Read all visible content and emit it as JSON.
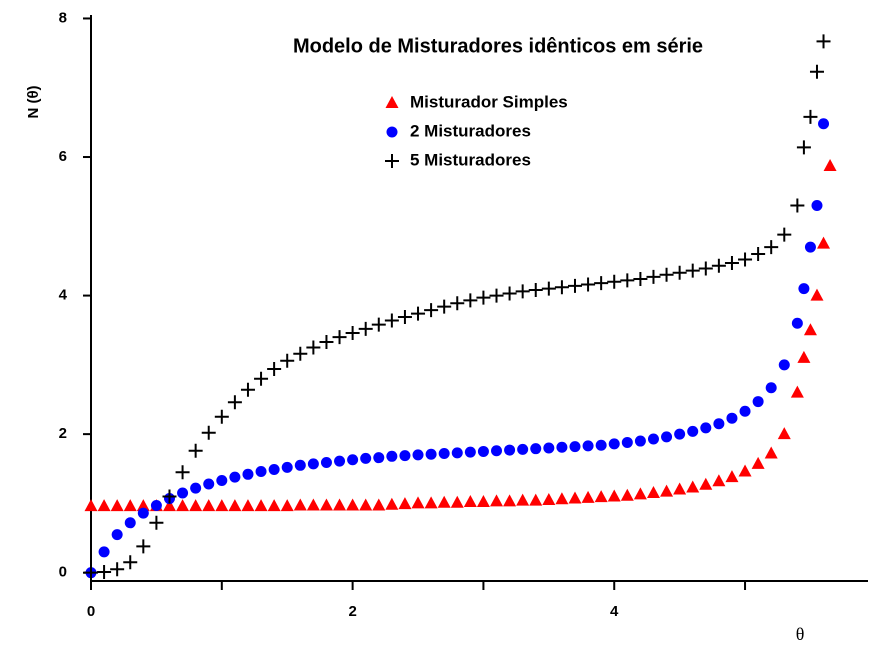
{
  "chart_data": {
    "type": "scatter",
    "title": "Modelo de Misturadores idênticos em série",
    "x_label": "θ",
    "y_label": "N (θ)",
    "x": [
      0,
      0.1,
      0.2,
      0.3,
      0.4,
      0.5,
      0.6,
      0.7,
      0.8,
      0.9,
      1.0,
      1.1,
      1.2,
      1.3,
      1.4,
      1.5,
      1.6,
      1.7,
      1.8,
      1.9,
      2.0,
      2.1,
      2.2,
      2.3,
      2.4,
      2.5,
      2.6,
      2.7,
      2.8,
      2.9,
      3.0,
      3.1,
      3.2,
      3.3,
      3.4,
      3.5,
      3.6,
      3.7,
      3.8,
      3.9,
      4.0,
      4.1,
      4.2,
      4.3,
      4.4,
      4.5,
      4.6,
      4.7,
      4.8,
      4.9,
      5.0,
      5.1,
      5.2,
      5.3,
      5.4,
      5.45,
      5.5,
      5.55,
      5.6,
      5.65
    ],
    "series": [
      {
        "name": "Misturador Simples",
        "color": "#ff0000",
        "marker": "triangle",
        "values": [
          0.96,
          0.96,
          0.96,
          0.96,
          0.96,
          0.96,
          0.96,
          0.96,
          0.96,
          0.96,
          0.96,
          0.96,
          0.96,
          0.96,
          0.96,
          0.96,
          0.97,
          0.97,
          0.97,
          0.97,
          0.97,
          0.97,
          0.97,
          0.98,
          0.99,
          1.0,
          1.0,
          1.01,
          1.01,
          1.02,
          1.02,
          1.03,
          1.03,
          1.04,
          1.04,
          1.05,
          1.06,
          1.07,
          1.08,
          1.09,
          1.1,
          1.11,
          1.13,
          1.15,
          1.17,
          1.2,
          1.23,
          1.27,
          1.32,
          1.38,
          1.46,
          1.57,
          1.72,
          2.0,
          2.6,
          3.1,
          3.5,
          4.0,
          4.75,
          5.87
        ]
      },
      {
        "name": "2 Misturadores",
        "color": "#0000ff",
        "marker": "circle",
        "values": [
          0,
          0.3,
          0.55,
          0.72,
          0.86,
          0.97,
          1.07,
          1.15,
          1.22,
          1.28,
          1.33,
          1.38,
          1.42,
          1.46,
          1.49,
          1.52,
          1.55,
          1.57,
          1.59,
          1.61,
          1.63,
          1.65,
          1.66,
          1.68,
          1.69,
          1.7,
          1.71,
          1.72,
          1.73,
          1.74,
          1.75,
          1.76,
          1.77,
          1.78,
          1.79,
          1.8,
          1.81,
          1.82,
          1.83,
          1.84,
          1.86,
          1.88,
          1.9,
          1.93,
          1.96,
          2.0,
          2.04,
          2.09,
          2.15,
          2.23,
          2.33,
          2.47,
          2.67,
          3.0,
          3.6,
          4.1,
          4.7,
          5.3,
          6.48,
          null
        ]
      },
      {
        "name": "5 Misturadores",
        "color": "#000000",
        "marker": "plus",
        "values": [
          0,
          0.01,
          0.05,
          0.15,
          0.38,
          0.72,
          1.1,
          1.45,
          1.76,
          2.02,
          2.25,
          2.46,
          2.64,
          2.8,
          2.94,
          3.06,
          3.16,
          3.25,
          3.33,
          3.4,
          3.46,
          3.52,
          3.58,
          3.64,
          3.69,
          3.74,
          3.79,
          3.84,
          3.89,
          3.93,
          3.97,
          4.0,
          4.03,
          4.06,
          4.08,
          4.1,
          4.12,
          4.14,
          4.16,
          4.18,
          4.2,
          4.22,
          4.24,
          4.27,
          4.3,
          4.33,
          4.36,
          4.39,
          4.43,
          4.47,
          4.52,
          4.6,
          4.7,
          4.88,
          5.3,
          6.14,
          6.58,
          7.23,
          7.67,
          null
        ]
      }
    ],
    "xlim": [
      0,
      5.94
    ],
    "ylim": [
      -0.12,
      8.05
    ],
    "xticks": [
      0,
      2,
      4
    ],
    "xticks_minor": [
      1,
      3,
      5
    ],
    "yticks": [
      0,
      2,
      4,
      6,
      8
    ],
    "legend": "upper center"
  }
}
